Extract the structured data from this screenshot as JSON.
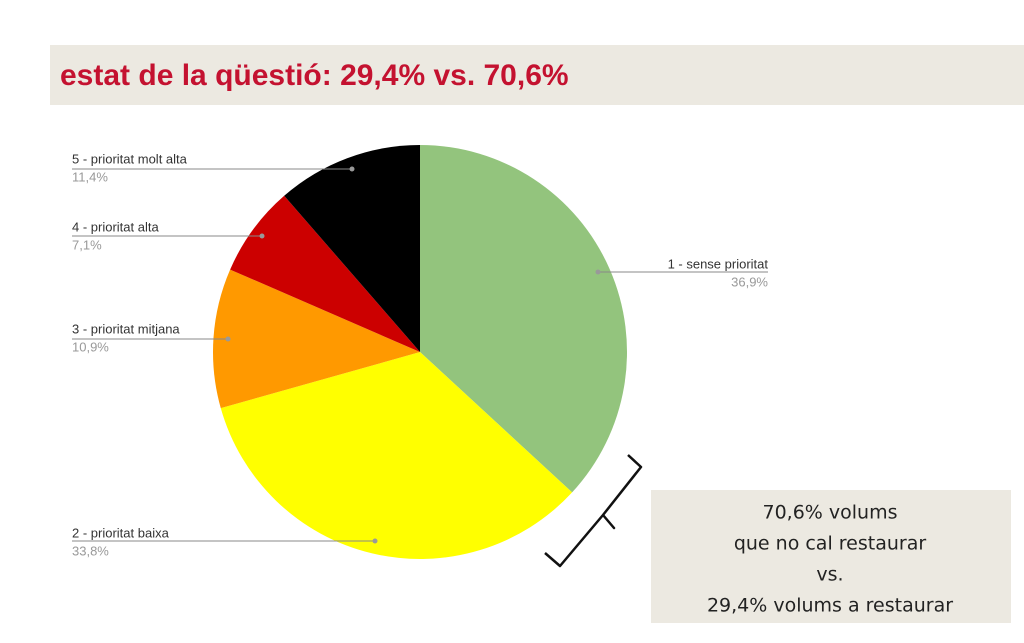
{
  "chart_data": {
    "type": "pie",
    "title": "estat de la qüestió: 29,4% vs. 70,6%",
    "categories": [
      "1 - sense prioritat",
      "2 - prioritat baixa",
      "3 - prioritat mitjana",
      "4 - prioritat alta",
      "5 - prioritat molt alta"
    ],
    "values": [
      36.9,
      33.8,
      10.9,
      7.1,
      11.4
    ],
    "value_labels": [
      "36,9%",
      "33,8%",
      "10,9%",
      "7,1%",
      "11,4%"
    ],
    "colors": [
      "#93c47d",
      "#ffff00",
      "#ff9900",
      "#cc0000",
      "#000000"
    ],
    "annotation": [
      "70,6% volums",
      "que no cal restaurar",
      "vs.",
      "29,4% volums a restaurar"
    ]
  }
}
